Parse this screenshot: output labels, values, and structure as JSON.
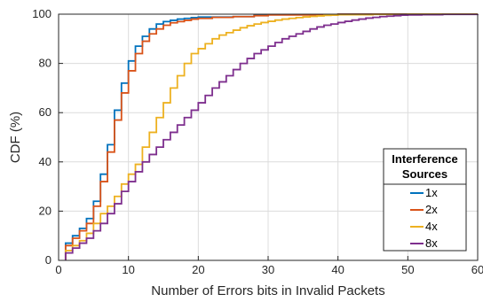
{
  "chart_data": {
    "type": "line",
    "step": true,
    "xlabel": "Number of Errors bits in Invalid Packets",
    "ylabel": "CDF (%)",
    "xlim": [
      0,
      60
    ],
    "ylim": [
      0,
      100
    ],
    "xticks": [
      0,
      10,
      20,
      30,
      40,
      50,
      60
    ],
    "yticks": [
      0,
      20,
      40,
      60,
      80,
      100
    ],
    "grid": true,
    "legend": {
      "title_line1": "Interference",
      "title_line2": "Sources",
      "placement": "lower-right"
    },
    "series": [
      {
        "name": "1x",
        "color": "#0072BD",
        "x": [
          1,
          2,
          3,
          4,
          5,
          6,
          7,
          8,
          9,
          10,
          11,
          12,
          13,
          14,
          15,
          16,
          17,
          18,
          19,
          20,
          25,
          28,
          30,
          40,
          60
        ],
        "y": [
          7,
          10,
          13,
          17,
          24,
          35,
          47,
          61,
          72,
          81,
          87,
          91,
          94,
          96,
          97,
          97.5,
          98,
          98.3,
          98.6,
          98.8,
          99,
          99.5,
          99.8,
          100,
          100
        ]
      },
      {
        "name": "2x",
        "color": "#D95319",
        "x": [
          1,
          2,
          3,
          4,
          5,
          6,
          7,
          8,
          9,
          10,
          11,
          12,
          13,
          14,
          15,
          16,
          17,
          18,
          19,
          20,
          22,
          25,
          28,
          30,
          40,
          60
        ],
        "y": [
          6,
          9,
          12,
          15,
          22,
          32,
          44,
          57,
          68,
          77,
          84,
          89,
          92,
          94,
          95.5,
          96.5,
          97,
          97.5,
          98,
          98.3,
          98.7,
          99,
          99.4,
          99.7,
          100,
          100
        ]
      },
      {
        "name": "4x",
        "color": "#EDB120",
        "x": [
          1,
          2,
          3,
          4,
          5,
          6,
          7,
          8,
          9,
          10,
          11,
          12,
          13,
          14,
          15,
          16,
          17,
          18,
          19,
          20,
          21,
          22,
          23,
          24,
          25,
          26,
          27,
          28,
          29,
          30,
          31,
          32,
          33,
          34,
          35,
          36,
          37,
          38,
          39,
          40,
          45,
          50,
          60
        ],
        "y": [
          4,
          6,
          8,
          11,
          15,
          19,
          22,
          26,
          31,
          35,
          39,
          46,
          52,
          58,
          64,
          70,
          75,
          80,
          84,
          86,
          88,
          90,
          91.5,
          92.5,
          93.5,
          94.5,
          95.3,
          96,
          96.6,
          97.1,
          97.6,
          98,
          98.3,
          98.6,
          98.9,
          99.1,
          99.3,
          99.5,
          99.6,
          99.8,
          99.9,
          100,
          100
        ]
      },
      {
        "name": "8x",
        "color": "#7E2F8E",
        "x": [
          1,
          2,
          3,
          4,
          5,
          6,
          7,
          8,
          9,
          10,
          11,
          12,
          13,
          14,
          15,
          16,
          17,
          18,
          19,
          20,
          21,
          22,
          23,
          24,
          25,
          26,
          27,
          28,
          29,
          30,
          31,
          32,
          33,
          34,
          35,
          36,
          37,
          38,
          39,
          40,
          41,
          42,
          43,
          44,
          45,
          46,
          47,
          48,
          49,
          50,
          52,
          55,
          60
        ],
        "y": [
          3,
          5,
          7,
          9,
          12,
          15,
          19,
          23,
          28,
          32,
          36,
          40,
          43,
          46,
          49,
          52,
          55,
          58,
          61,
          64,
          67,
          70,
          72.5,
          75,
          77.5,
          80,
          82,
          84,
          85.5,
          87,
          88.5,
          90,
          91,
          92,
          93,
          94,
          94.8,
          95.5,
          96,
          96.6,
          97.1,
          97.6,
          98,
          98.4,
          98.7,
          99,
          99.2,
          99.4,
          99.6,
          99.7,
          99.8,
          99.9,
          100
        ]
      }
    ]
  }
}
